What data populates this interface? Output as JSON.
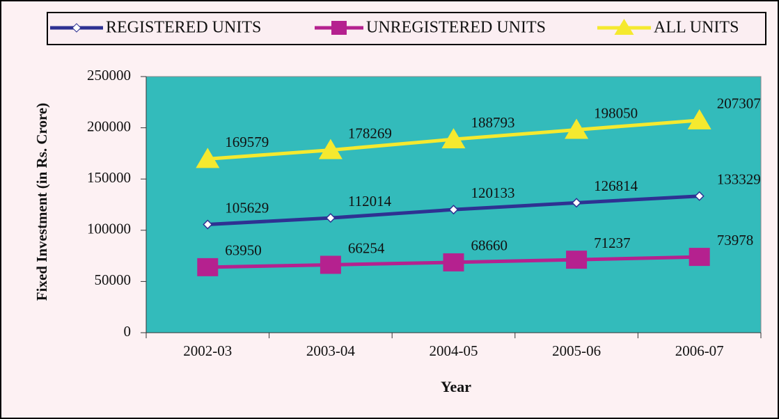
{
  "chart_data": {
    "type": "line",
    "x_label": "Year",
    "y_label": "Fixed Investment (in Rs. Crore)",
    "categories": [
      "2002-03",
      "2003-04",
      "2004-05",
      "2005-06",
      "2006-07"
    ],
    "series": [
      {
        "name": "REGISTERED UNITS",
        "color": "#2e3192",
        "marker": "diamond",
        "values": [
          105629,
          112014,
          120133,
          126814,
          133329
        ]
      },
      {
        "name": "UNREGISTERED UNITS",
        "color": "#b5218f",
        "marker": "square",
        "values": [
          63950,
          66254,
          68660,
          71237,
          73978
        ]
      },
      {
        "name": "ALL UNITS",
        "color": "#f5e92f",
        "marker": "triangle",
        "values": [
          169579,
          178269,
          188793,
          198050,
          207307
        ]
      }
    ],
    "ylim": [
      0,
      250000
    ],
    "yticks": [
      0,
      50000,
      100000,
      150000,
      200000,
      250000
    ],
    "grid": false,
    "legend": "top",
    "plot_background": "#33bbbb"
  }
}
